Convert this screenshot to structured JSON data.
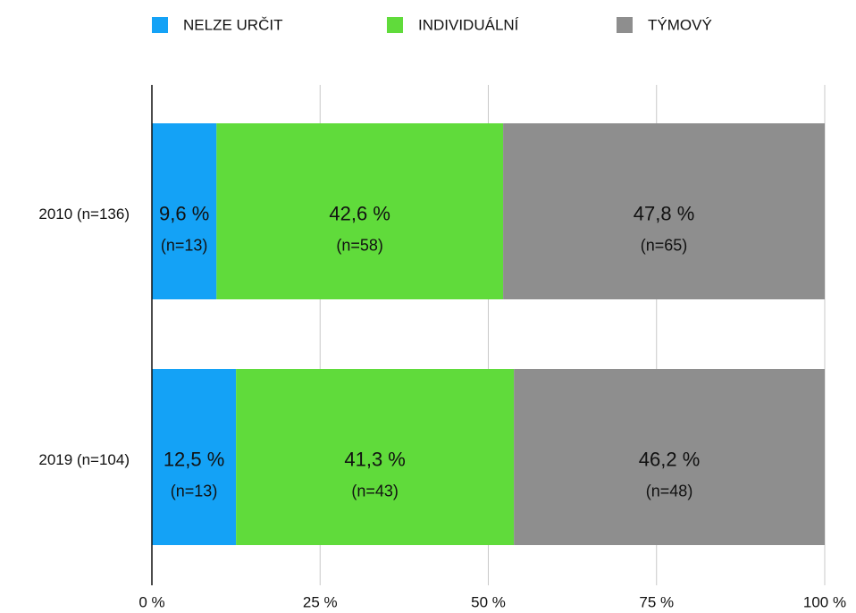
{
  "chart_data": {
    "type": "stacked_barh",
    "categories": [
      "2010 (n=136)",
      "2019 (n=104)"
    ],
    "series": [
      {
        "name": "NELZE URČIT",
        "color": "#14a2f6",
        "values": [
          9.6,
          12.5
        ],
        "value_labels": [
          "9,6 %",
          "12,5 %"
        ],
        "count_labels": [
          "(n=13)",
          "(n=13)"
        ]
      },
      {
        "name": "INDIVIDUÁLNÍ",
        "color": "#60db3b",
        "values": [
          42.6,
          41.3
        ],
        "value_labels": [
          "42,6 %",
          "41,3 %"
        ],
        "count_labels": [
          "(n=58)",
          "(n=43)"
        ]
      },
      {
        "name": "TÝMOVÝ",
        "color": "#8e8e8e",
        "values": [
          47.8,
          46.2
        ],
        "value_labels": [
          "47,8 %",
          "46,2 %"
        ],
        "count_labels": [
          "(n=65)",
          "(n=48)"
        ]
      }
    ],
    "xlim": [
      0,
      100
    ],
    "xticks": [
      {
        "value": 0,
        "label": "0 %"
      },
      {
        "value": 25,
        "label": "25 %"
      },
      {
        "value": 50,
        "label": "50 %"
      },
      {
        "value": 75,
        "label": "75 %"
      },
      {
        "value": 100,
        "label": "100 %"
      }
    ],
    "grid": true,
    "legend": "top"
  }
}
